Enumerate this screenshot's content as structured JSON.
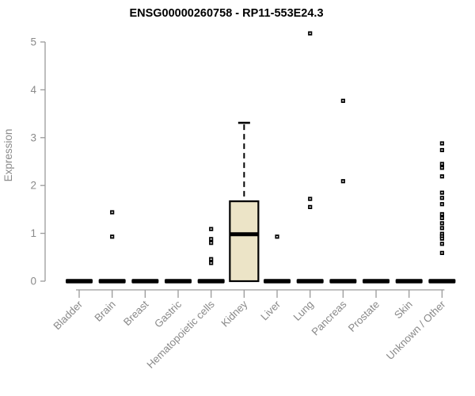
{
  "chart_data": {
    "type": "boxplot",
    "title": "ENSG00000260758 - RP11-553E24.3",
    "ylabel": "Expression",
    "xlabel": "",
    "ylim": [
      0,
      5
    ],
    "yticks": [
      0,
      1,
      2,
      3,
      4,
      5
    ],
    "grid": false,
    "legend": false,
    "categories": [
      "Bladder",
      "Brain",
      "Breast",
      "Gastric",
      "Hematopoietic cells",
      "Kidney",
      "Liver",
      "Lung",
      "Pancreas",
      "Prostate",
      "Skin",
      "Unknown / Other"
    ],
    "series": [
      {
        "category": "Bladder",
        "q1": 0,
        "median": 0,
        "q3": 0,
        "whisker_low": 0,
        "whisker_high": 0,
        "outliers": []
      },
      {
        "category": "Brain",
        "q1": 0,
        "median": 0,
        "q3": 0,
        "whisker_low": 0,
        "whisker_high": 0,
        "outliers": [
          1.44,
          0.93
        ]
      },
      {
        "category": "Breast",
        "q1": 0,
        "median": 0,
        "q3": 0,
        "whisker_low": 0,
        "whisker_high": 0,
        "outliers": []
      },
      {
        "category": "Gastric",
        "q1": 0,
        "median": 0,
        "q3": 0,
        "whisker_low": 0,
        "whisker_high": 0,
        "outliers": []
      },
      {
        "category": "Hematopoietic cells",
        "q1": 0,
        "median": 0,
        "q3": 0,
        "whisker_low": 0,
        "whisker_high": 0,
        "outliers": [
          1.09,
          0.88,
          0.8,
          0.46,
          0.38
        ]
      },
      {
        "category": "Kidney",
        "q1": 0,
        "median": 0.98,
        "q3": 1.67,
        "whisker_low": 0,
        "whisker_high": 3.31,
        "outliers": []
      },
      {
        "category": "Liver",
        "q1": 0,
        "median": 0,
        "q3": 0,
        "whisker_low": 0,
        "whisker_high": 0,
        "outliers": [
          0.93
        ]
      },
      {
        "category": "Lung",
        "q1": 0,
        "median": 0,
        "q3": 0,
        "whisker_low": 0,
        "whisker_high": 0,
        "outliers": [
          5.18,
          1.72,
          1.55
        ]
      },
      {
        "category": "Pancreas",
        "q1": 0,
        "median": 0,
        "q3": 0,
        "whisker_low": 0,
        "whisker_high": 0,
        "outliers": [
          3.77,
          2.09
        ]
      },
      {
        "category": "Prostate",
        "q1": 0,
        "median": 0,
        "q3": 0,
        "whisker_low": 0,
        "whisker_high": 0,
        "outliers": []
      },
      {
        "category": "Skin",
        "q1": 0,
        "median": 0,
        "q3": 0,
        "whisker_low": 0,
        "whisker_high": 0,
        "outliers": []
      },
      {
        "category": "Unknown / Other",
        "q1": 0,
        "median": 0,
        "q3": 0,
        "whisker_low": 0,
        "whisker_high": 0,
        "outliers": [
          2.88,
          2.74,
          2.45,
          2.37,
          2.19,
          1.85,
          1.74,
          1.61,
          1.4,
          1.32,
          1.21,
          1.11,
          0.99,
          0.94,
          0.89,
          0.78,
          0.59
        ]
      }
    ],
    "colors": {
      "background": "#ffffff",
      "box_fill": "#ece4c7",
      "box_border": "#000000",
      "median": "#000000",
      "marker": "#000000",
      "marker_center": "#ffffff",
      "axis": "#9a9a9a",
      "tick_text": "#8a8a8a",
      "title_text": "#000000"
    }
  }
}
